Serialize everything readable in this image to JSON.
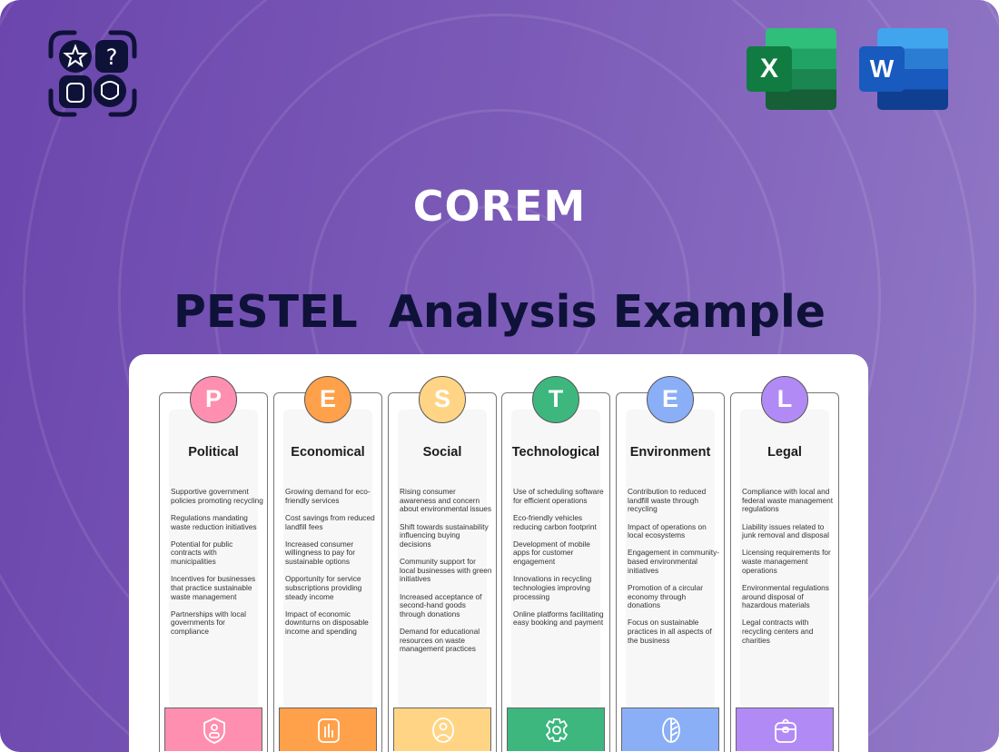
{
  "brand": "COREM",
  "title": "PESTEL  Analysis Example",
  "office_icons": [
    {
      "name": "excel-icon",
      "letter": "X"
    },
    {
      "name": "word-icon",
      "letter": "W"
    }
  ],
  "columns": [
    {
      "letter": "P",
      "title": "Political",
      "color": "#ff8fb0",
      "icon": "shield-user-icon",
      "items": [
        "Supportive government policies promoting recycling",
        "Regulations mandating waste reduction initiatives",
        "Potential for public contracts with municipalities",
        "Incentives for businesses that practice sustainable waste management",
        "Partnerships with local governments for compliance"
      ]
    },
    {
      "letter": "E",
      "title": "Economical",
      "color": "#ffa04a",
      "icon": "bar-chart-icon",
      "items": [
        "Growing demand for eco-friendly services",
        "Cost savings from reduced landfill fees",
        "Increased consumer willingness to pay for sustainable options",
        "Opportunity for service subscriptions providing steady income",
        "Impact of economic downturns on disposable income and spending"
      ]
    },
    {
      "letter": "S",
      "title": "Social",
      "color": "#ffd585",
      "icon": "user-circle-icon",
      "items": [
        "Rising consumer awareness and concern about environmental issues",
        "Shift towards sustainability influencing buying decisions",
        "Community support for local businesses with green initiatives",
        "Increased acceptance of second-hand goods through donations",
        "Demand for educational resources on waste management practices"
      ]
    },
    {
      "letter": "T",
      "title": "Technological",
      "color": "#3db77e",
      "icon": "gear-icon",
      "items": [
        "Use of scheduling software for efficient operations",
        "Eco-friendly vehicles reducing carbon footprint",
        "Development of mobile apps for customer engagement",
        "Innovations in recycling technologies improving processing",
        "Online platforms facilitating easy booking and payment"
      ]
    },
    {
      "letter": "E",
      "title": "Environment",
      "color": "#8aaff7",
      "icon": "leaf-icon",
      "items": [
        "Contribution to reduced landfill waste through recycling",
        "Impact of operations on local ecosystems",
        "Engagement in community-based environmental initiatives",
        "Promotion of a circular economy through donations",
        "Focus on sustainable practices in all aspects of the business"
      ]
    },
    {
      "letter": "L",
      "title": "Legal",
      "color": "#b28af5",
      "icon": "briefcase-icon",
      "items": [
        "Compliance with local and federal waste management regulations",
        "Liability issues related to junk removal and disposal",
        "Licensing requirements for waste management operations",
        "Environmental regulations around disposal of hazardous materials",
        "Legal contracts with recycling centers and charities"
      ]
    }
  ]
}
